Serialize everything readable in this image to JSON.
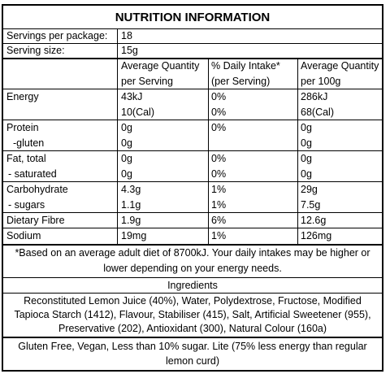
{
  "title": "NUTRITION INFORMATION",
  "servings_per_package_label": "Servings per package:",
  "servings_per_package_value": "18",
  "serving_size_label": "Serving size:",
  "serving_size_value": "15g",
  "headers": {
    "col1_line1": "Average Quantity",
    "col1_line2": "per Serving",
    "col2_line1": "% Daily Intake*",
    "col2_line2": "(per Serving)",
    "col3_line1": "Average Quantity",
    "col3_line2": "per 100g"
  },
  "rows": [
    {
      "name": "Energy",
      "serving": "43kJ",
      "di": "0%",
      "per100": "286kJ"
    },
    {
      "name": "",
      "serving": "10(Cal)",
      "di": "0%",
      "per100": "68(Cal)"
    },
    {
      "name": "Protein",
      "serving": "0g",
      "di": "0%",
      "per100": "0g"
    },
    {
      "name": "-gluten",
      "serving": "0g",
      "di": "",
      "per100": "0g"
    },
    {
      "name": "Fat, total",
      "serving": "0g",
      "di": "0%",
      "per100": "0g"
    },
    {
      "name": "- saturated",
      "serving": "0g",
      "di": "0%",
      "per100": "0g"
    },
    {
      "name": "Carbohydrate",
      "serving": "4.3g",
      "di": "1%",
      "per100": "29g"
    },
    {
      "name": "- sugars",
      "serving": "1.1g",
      "di": "1%",
      "per100": "7.5g"
    },
    {
      "name": "Dietary Fibre",
      "serving": "1.9g",
      "di": "6%",
      "per100": "12.6g"
    },
    {
      "name": "Sodium",
      "serving": "19mg",
      "di": "1%",
      "per100": "126mg"
    }
  ],
  "footnote_line1": "*Based on an average adult diet of 8700kJ. Your daily intakes may be higher or",
  "footnote_line2": "lower depending on your energy needs.",
  "ingredients_heading": "Ingredients",
  "ingredients_line1": "Reconstituted Lemon Juice (40%), Water, Polydextrose, Fructose, Modified",
  "ingredients_line2": "Tapioca Starch (1412), Flavour, Stabiliser (415), Salt, Artificial Sweetener (955),",
  "ingredients_line3": "Preservative (202), Antioxidant (300), Natural Colour (160a)",
  "claims_line1": "Gluten Free, Vegan, Less than 10% sugar. Lite (75% less energy than regular",
  "claims_line2": "lemon curd)"
}
